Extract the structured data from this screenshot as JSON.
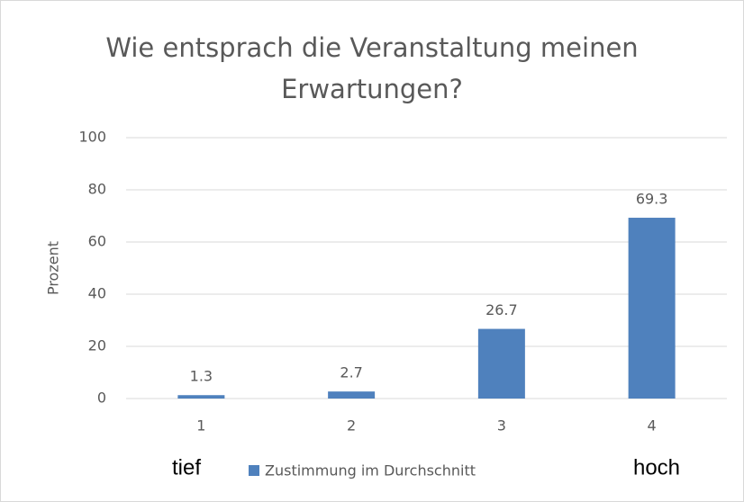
{
  "chart_data": {
    "type": "bar",
    "title": "Wie entsprach die Veranstaltung meinen Erwartungen?",
    "y_label": "Prozent",
    "categories": [
      "1",
      "2",
      "3",
      "4"
    ],
    "series": [
      {
        "name": "Zustimmung im Durchschnitt",
        "color": "#4f81bd",
        "values": [
          1.3,
          2.7,
          26.7,
          69.3
        ]
      }
    ],
    "ylim": [
      0,
      100
    ],
    "yticks": [
      0,
      20,
      40,
      60,
      80,
      100
    ],
    "grid": true,
    "legend": "bottom",
    "annotations": [
      "tief",
      "hoch"
    ]
  }
}
